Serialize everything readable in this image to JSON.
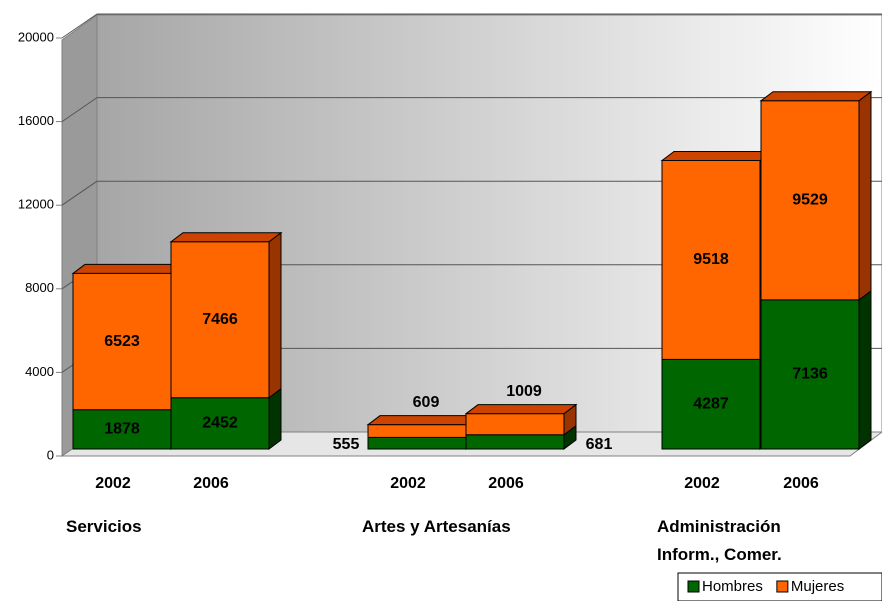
{
  "chart_data": {
    "type": "bar",
    "stacked": true,
    "categories": [
      "2002",
      "2006",
      "2002",
      "2006",
      "2002",
      "2006"
    ],
    "groups": [
      "Servicios",
      "Artes y Artesanías",
      "Administración\nInform., Comer."
    ],
    "series": [
      {
        "name": "Hombres",
        "color": "#006600",
        "values": [
          1878,
          2452,
          555,
          681,
          4287,
          7136
        ]
      },
      {
        "name": "Mujeres",
        "color": "#ff6600",
        "values": [
          6523,
          7466,
          609,
          1009,
          9518,
          9529
        ]
      }
    ],
    "ylim": [
      0,
      20000
    ],
    "yticks": [
      0,
      4000,
      8000,
      12000,
      16000,
      20000
    ],
    "grid": true,
    "legend": "bottom-right"
  }
}
